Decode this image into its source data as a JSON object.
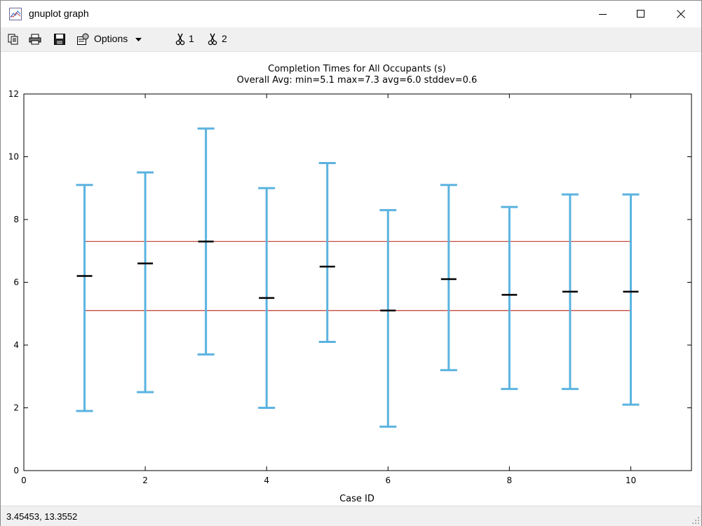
{
  "window": {
    "title": "gnuplot graph"
  },
  "toolbar": {
    "options_label": "Options",
    "plot1_label": "1",
    "plot2_label": "2"
  },
  "status": {
    "coordinates": "3.45453,  13.3552"
  },
  "colors": {
    "errorbar": "#5bb3e0",
    "mean": "#000000",
    "range_line": "#c0392b"
  },
  "chart_data": {
    "type": "errorbar",
    "title": "Completion Times for All Occupants (s)",
    "subtitle": "Overall Avg: min=5.1 max=7.3 avg=6.0 stddev=0.6",
    "xlabel": "Case ID",
    "ylabel": "",
    "xlim": [
      0,
      11
    ],
    "ylim": [
      0,
      12
    ],
    "xticks": [
      0,
      2,
      4,
      6,
      8,
      10
    ],
    "yticks": [
      0,
      2,
      4,
      6,
      8,
      10,
      12
    ],
    "grid": false,
    "x": [
      1,
      2,
      3,
      4,
      5,
      6,
      7,
      8,
      9,
      10
    ],
    "mean": [
      6.2,
      6.6,
      7.3,
      5.5,
      6.5,
      5.1,
      6.1,
      5.6,
      5.7,
      5.7
    ],
    "low": [
      1.9,
      2.5,
      3.7,
      2.0,
      4.1,
      1.4,
      3.2,
      2.6,
      2.6,
      2.1
    ],
    "high": [
      9.1,
      9.5,
      10.9,
      9.0,
      9.8,
      8.3,
      9.1,
      8.4,
      8.8,
      8.8
    ],
    "reference_lines": [
      {
        "y": 7.3,
        "x_from": 1,
        "x_to": 10
      },
      {
        "y": 5.1,
        "x_from": 1,
        "x_to": 10
      }
    ]
  }
}
